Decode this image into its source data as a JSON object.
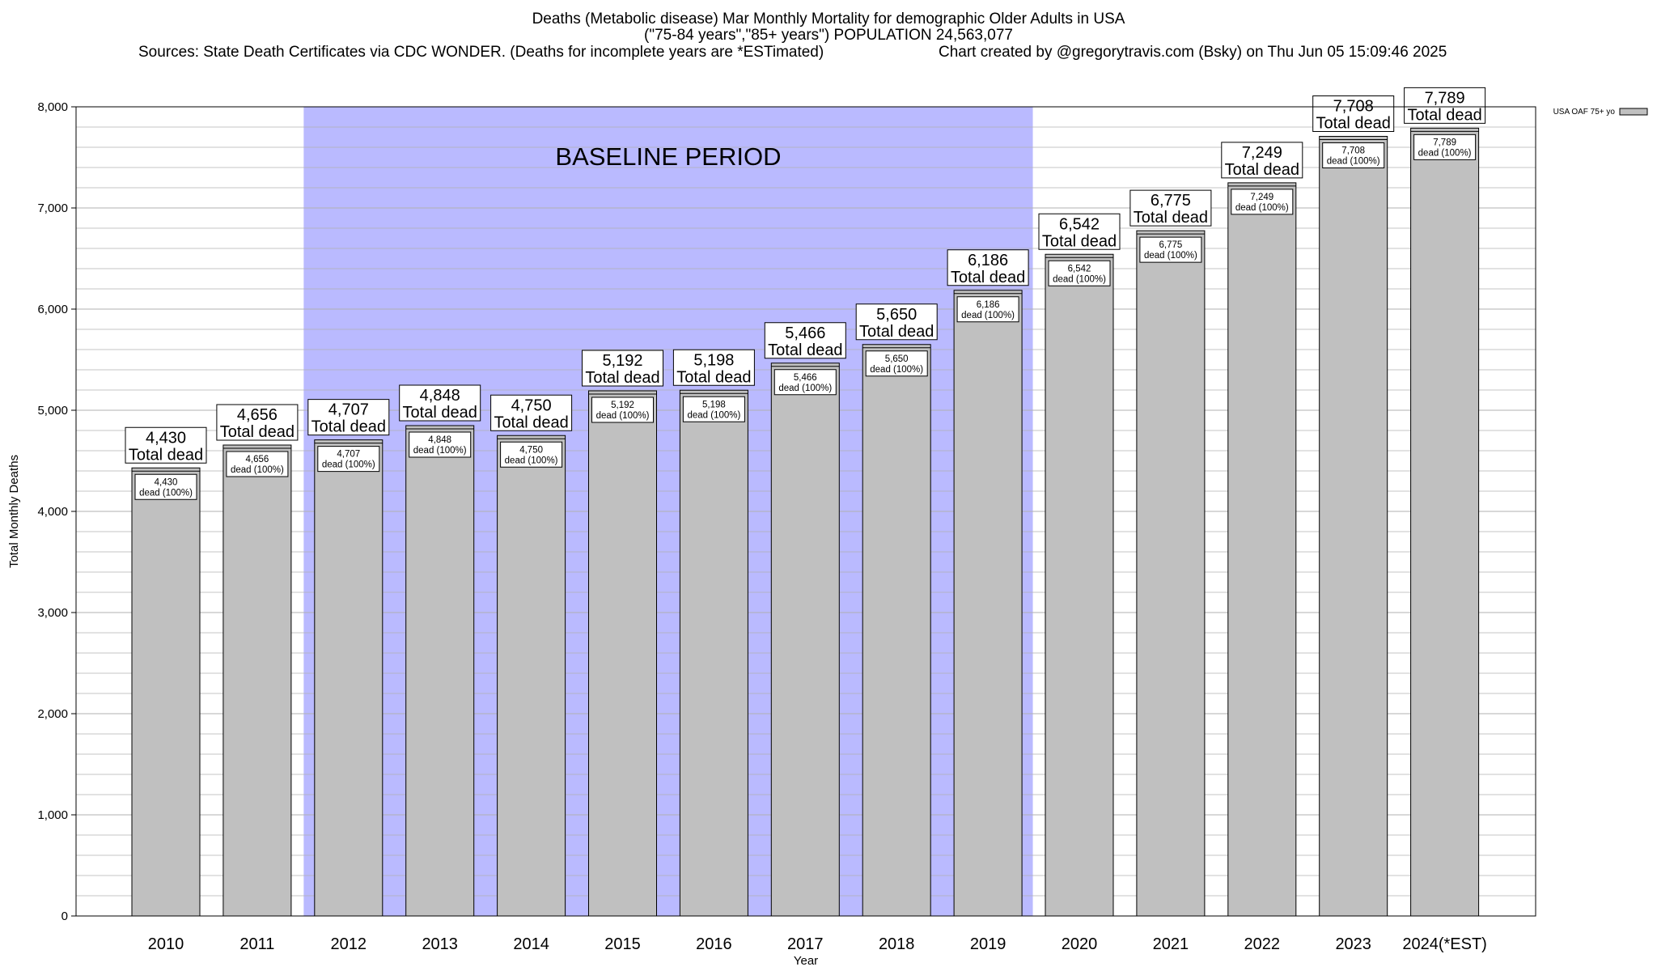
{
  "header": {
    "title_line1": "Deaths (Metabolic disease) Mar Monthly Mortality for demographic Older Adults in USA",
    "title_line2": "(\"75-84 years\",\"85+ years\") POPULATION 24,563,077",
    "sources": "Sources: State Death Certificates via CDC WONDER. (Deaths for incomplete years are *ESTimated)",
    "credit": "Chart created by @gregorytravis.com (Bsky) on Thu Jun 05 15:09:46 2025"
  },
  "colors": {
    "bar_fill": "#c0c0c0",
    "baseline_fill": "#babaff",
    "grid": "#b0b0b0",
    "axis": "#000000"
  },
  "chart_data": {
    "type": "bar",
    "title": "Deaths (Metabolic disease) Mar Monthly Mortality for demographic Older Adults in USA",
    "xlabel": "Year",
    "ylabel": "Total Monthly Deaths",
    "ylim": [
      0,
      8000
    ],
    "y_ticks": [
      0,
      1000,
      2000,
      3000,
      4000,
      5000,
      6000,
      7000,
      8000
    ],
    "y_tick_labels": [
      "0",
      "1,000",
      "2,000",
      "3,000",
      "4,000",
      "5,000",
      "6,000",
      "7,000",
      "8,000"
    ],
    "categories": [
      "2010",
      "2011",
      "2012",
      "2013",
      "2014",
      "2015",
      "2016",
      "2017",
      "2018",
      "2019",
      "2020",
      "2021",
      "2022",
      "2023",
      "2024(*EST)"
    ],
    "series": [
      {
        "name": "USA OAF 75+ yo",
        "values": [
          4430,
          4656,
          4707,
          4848,
          4750,
          5192,
          5198,
          5466,
          5650,
          6186,
          6542,
          6775,
          7249,
          7708,
          7789
        ]
      }
    ],
    "top_labels": [
      "4,430",
      "4,656",
      "4,707",
      "4,848",
      "4,750",
      "5,192",
      "5,198",
      "5,466",
      "5,650",
      "6,186",
      "6,542",
      "6,775",
      "7,249",
      "7,708",
      "7,789"
    ],
    "top_label_suffix": "Total dead",
    "inner_label_suffix": "dead (100%)",
    "baseline_period": {
      "label": "BASELINE PERIOD",
      "start": "2012",
      "end": "2019"
    },
    "legend": {
      "position": "top-right",
      "entries": [
        "USA OAF 75+ yo"
      ]
    },
    "grid": true
  }
}
